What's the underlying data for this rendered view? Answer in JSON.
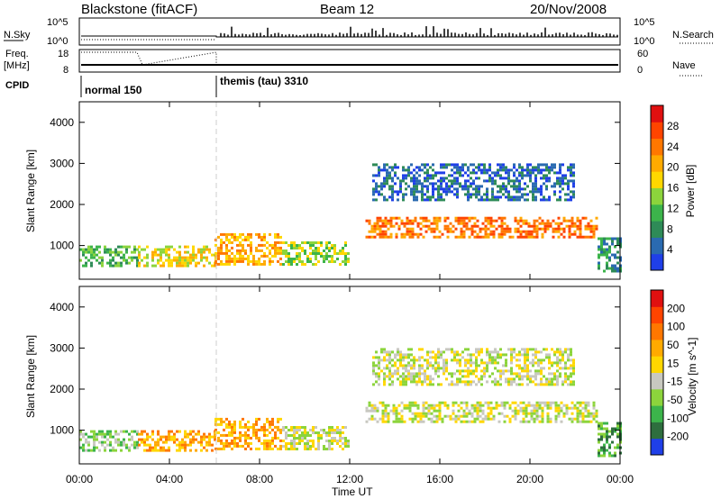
{
  "header": {
    "station": "Blackstone (fitACF)",
    "beam": "Beam 12",
    "date": "20/Nov/2008"
  },
  "top_panels": {
    "nsky_label": "N.Sky",
    "nsky_ticks": [
      "10^5",
      "10^0"
    ],
    "nsearch_label": "N.Search",
    "freq_label_1": "Freq.",
    "freq_label_2": "[MHz]",
    "freq_ticks": [
      "18",
      "8"
    ],
    "nave_label": "Nave",
    "nave_ticks": [
      "60",
      "0"
    ],
    "cpid_label": "CPID",
    "cpid_segments": [
      "normal 150",
      "themis (tau) 3310"
    ],
    "right_ticks_nsky": [
      "10^5",
      "10^0"
    ]
  },
  "chart_data": [
    {
      "type": "heatmap",
      "title": "",
      "xlabel": "Time UT",
      "ylabel": "Slant Range [km]",
      "x_ticks": [
        "00:00",
        "04:00",
        "08:00",
        "12:00",
        "16:00",
        "20:00",
        "00:00"
      ],
      "xlim": [
        0,
        24
      ],
      "y_ticks": [
        1000,
        2000,
        3000,
        4000
      ],
      "ylim": [
        180,
        4500
      ],
      "colorbar": {
        "label": "Power [dB]",
        "ticks": [
          4,
          8,
          12,
          16,
          20,
          24,
          28
        ],
        "colors": [
          "#1f3fe8",
          "#2a6ab0",
          "#2e8b57",
          "#3cb44b",
          "#8cd43c",
          "#ffd700",
          "#ffaa00",
          "#ff7700",
          "#ff4400",
          "#e01010"
        ]
      },
      "regions": [
        {
          "t0": 0.0,
          "t1": 2.6,
          "r0": 500,
          "r1": 1000,
          "level": 3
        },
        {
          "t0": 2.6,
          "t1": 6.0,
          "r0": 520,
          "r1": 1000,
          "level": 5
        },
        {
          "t0": 6.0,
          "t1": 9.0,
          "r0": 520,
          "r1": 1300,
          "level": 6
        },
        {
          "t0": 9.0,
          "t1": 12.0,
          "r0": 550,
          "r1": 1100,
          "level": 4
        },
        {
          "t0": 12.7,
          "t1": 23.0,
          "r0": 1200,
          "r1": 1700,
          "level": 7
        },
        {
          "t0": 13.0,
          "t1": 22.0,
          "r0": 2100,
          "r1": 3000,
          "level": 1
        },
        {
          "t0": 23.0,
          "t1": 24.0,
          "r0": 400,
          "r1": 1200,
          "level": 2
        }
      ]
    },
    {
      "type": "heatmap",
      "title": "",
      "xlabel": "Time UT",
      "ylabel": "Slant Range [km]",
      "x_ticks": [
        "00:00",
        "04:00",
        "08:00",
        "12:00",
        "16:00",
        "20:00",
        "00:00"
      ],
      "xlim": [
        0,
        24
      ],
      "y_ticks": [
        1000,
        2000,
        3000,
        4000
      ],
      "ylim": [
        180,
        4500
      ],
      "colorbar": {
        "label": "Velocity [m s^-1]",
        "ticks": [
          "200",
          "100",
          "50",
          "15",
          "-15",
          "-50",
          "-100",
          "-200"
        ],
        "colors": [
          "#1f3fe8",
          "#2e6e3e",
          "#3cb44b",
          "#8cd43c",
          "#c8c8c0",
          "#ffd700",
          "#ffaa00",
          "#ff7700",
          "#ff4400",
          "#e01010"
        ]
      },
      "regions": [
        {
          "t0": 0.0,
          "t1": 2.6,
          "r0": 500,
          "r1": 1000,
          "level": 3
        },
        {
          "t0": 2.6,
          "t1": 6.0,
          "r0": 520,
          "r1": 1000,
          "level": 6
        },
        {
          "t0": 6.0,
          "t1": 9.0,
          "r0": 520,
          "r1": 1300,
          "level": 6
        },
        {
          "t0": 9.0,
          "t1": 12.0,
          "r0": 550,
          "r1": 1100,
          "level": 4
        },
        {
          "t0": 12.7,
          "t1": 23.0,
          "r0": 1200,
          "r1": 1700,
          "level": 4
        },
        {
          "t0": 13.0,
          "t1": 22.0,
          "r0": 2100,
          "r1": 3000,
          "level": 4
        },
        {
          "t0": 23.0,
          "t1": 24.0,
          "r0": 400,
          "r1": 1200,
          "level": 2
        }
      ]
    }
  ]
}
